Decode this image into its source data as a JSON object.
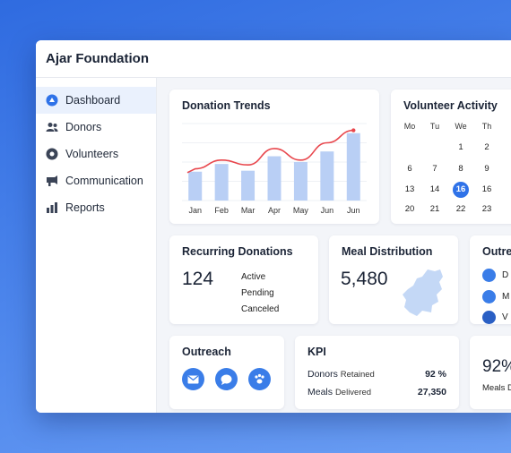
{
  "app": {
    "title": "Ajar Foundation"
  },
  "sidebar": {
    "items": [
      {
        "label": "Dashboard",
        "icon": "dashboard-icon",
        "active": true
      },
      {
        "label": "Donors",
        "icon": "users-icon",
        "active": false
      },
      {
        "label": "Volunteers",
        "icon": "volunteer-icon",
        "active": false
      },
      {
        "label": "Communication",
        "icon": "megaphone-icon",
        "active": false
      },
      {
        "label": "Reports",
        "icon": "bar-chart-icon",
        "active": false
      }
    ]
  },
  "donation_trends": {
    "title": "Donation Trends",
    "chart_data": {
      "type": "bar",
      "categories": [
        "Jan",
        "Feb",
        "Mar",
        "Apr",
        "May",
        "Jun",
        "Jun"
      ],
      "values": [
        30,
        38,
        31,
        46,
        40,
        51,
        70
      ],
      "line_values": [
        33,
        42,
        37,
        54,
        42,
        60,
        73
      ],
      "title": "Donation Trends",
      "xlabel": "",
      "ylabel": "",
      "ylim": [
        0,
        80
      ],
      "grid": true
    }
  },
  "volunteer_activity": {
    "title": "Volunteer Activity",
    "weekdays": [
      "Mo",
      "Tu",
      "We",
      "Th"
    ],
    "rows": [
      [
        "",
        "",
        "1",
        "2"
      ],
      [
        "6",
        "7",
        "8",
        "9"
      ],
      [
        "13",
        "14",
        "16",
        "16"
      ],
      [
        "20",
        "21",
        "22",
        "23"
      ]
    ],
    "selected": "16"
  },
  "recurring": {
    "title": "Recurring Donations",
    "count": "124",
    "statuses": [
      "Active",
      "Pending",
      "Canceled"
    ]
  },
  "meal": {
    "title": "Meal Distribution",
    "count": "5,480"
  },
  "outreach_list": {
    "title": "Outre",
    "items": [
      {
        "label": "D",
        "icon": "person-icon"
      },
      {
        "label": "M",
        "icon": "mail-icon"
      },
      {
        "label": "V",
        "icon": "clock-icon"
      }
    ]
  },
  "outreach": {
    "title": "Outreach",
    "buttons": [
      "mail-icon",
      "chat-icon",
      "paw-icon"
    ]
  },
  "kpi": {
    "title": "KPI",
    "rows": [
      {
        "label": "Donors",
        "sub": "Retained",
        "value": "92 %"
      },
      {
        "label": "Meals",
        "sub": "Delivered",
        "value": "27,350"
      }
    ]
  },
  "stat": {
    "value": "92%",
    "label": "Meals D"
  },
  "colors": {
    "accent": "#2f72e8",
    "bar": "#b9cff5",
    "line": "#e8474d"
  }
}
